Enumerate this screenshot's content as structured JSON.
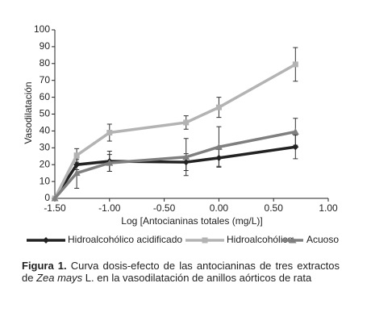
{
  "chart_data": {
    "type": "line",
    "y_label": "Vasodilatación",
    "x_label": "Log [Antocianinas totales (mg/L)]",
    "x": [
      -1.5,
      -1.3,
      -1.0,
      -0.3,
      0.0,
      0.7
    ],
    "xlim": [
      -1.5,
      1.0
    ],
    "xticks": [
      {
        "value": -1.5,
        "label": "-1.50"
      },
      {
        "value": -1.0,
        "label": "-1.00"
      },
      {
        "value": -0.5,
        "label": "-0.50"
      },
      {
        "value": 0,
        "label": "0.00"
      },
      {
        "value": 0.5,
        "label": "0.50"
      },
      {
        "value": 1.0,
        "label": "1.00"
      }
    ],
    "ylim": [
      0,
      100
    ],
    "yticks": [
      0,
      10,
      20,
      30,
      40,
      50,
      60,
      70,
      80,
      90,
      100
    ],
    "legend": "bottom",
    "series": [
      {
        "name": "Hidroalcohólico acidificado",
        "color": "#222222",
        "marker": "diamond",
        "values": [
          0,
          20,
          22,
          21.5,
          24,
          30.5
        ],
        "errors": [
          0,
          3,
          6,
          5,
          5,
          7
        ]
      },
      {
        "name": "Hidroalcohólico",
        "color": "#b3b3b3",
        "marker": "square",
        "values": [
          0,
          25.5,
          39,
          45,
          54,
          79.5
        ],
        "errors": [
          0,
          4,
          5,
          4,
          6,
          10
        ]
      },
      {
        "name": "Acuoso",
        "color": "#7f7f7f",
        "marker": "triangle",
        "values": [
          0,
          15,
          21,
          24.5,
          30.5,
          39.5
        ],
        "errors": [
          0,
          9,
          5,
          11,
          12,
          8
        ]
      }
    ]
  },
  "caption": {
    "label": "Figura 1.",
    "text_before": "Curva dosis-efecto de las antocianinas de tres extractos de",
    "species": "Zea mays",
    "text_after": "L. en la vasodilatación de anillos aórticos de rata"
  }
}
